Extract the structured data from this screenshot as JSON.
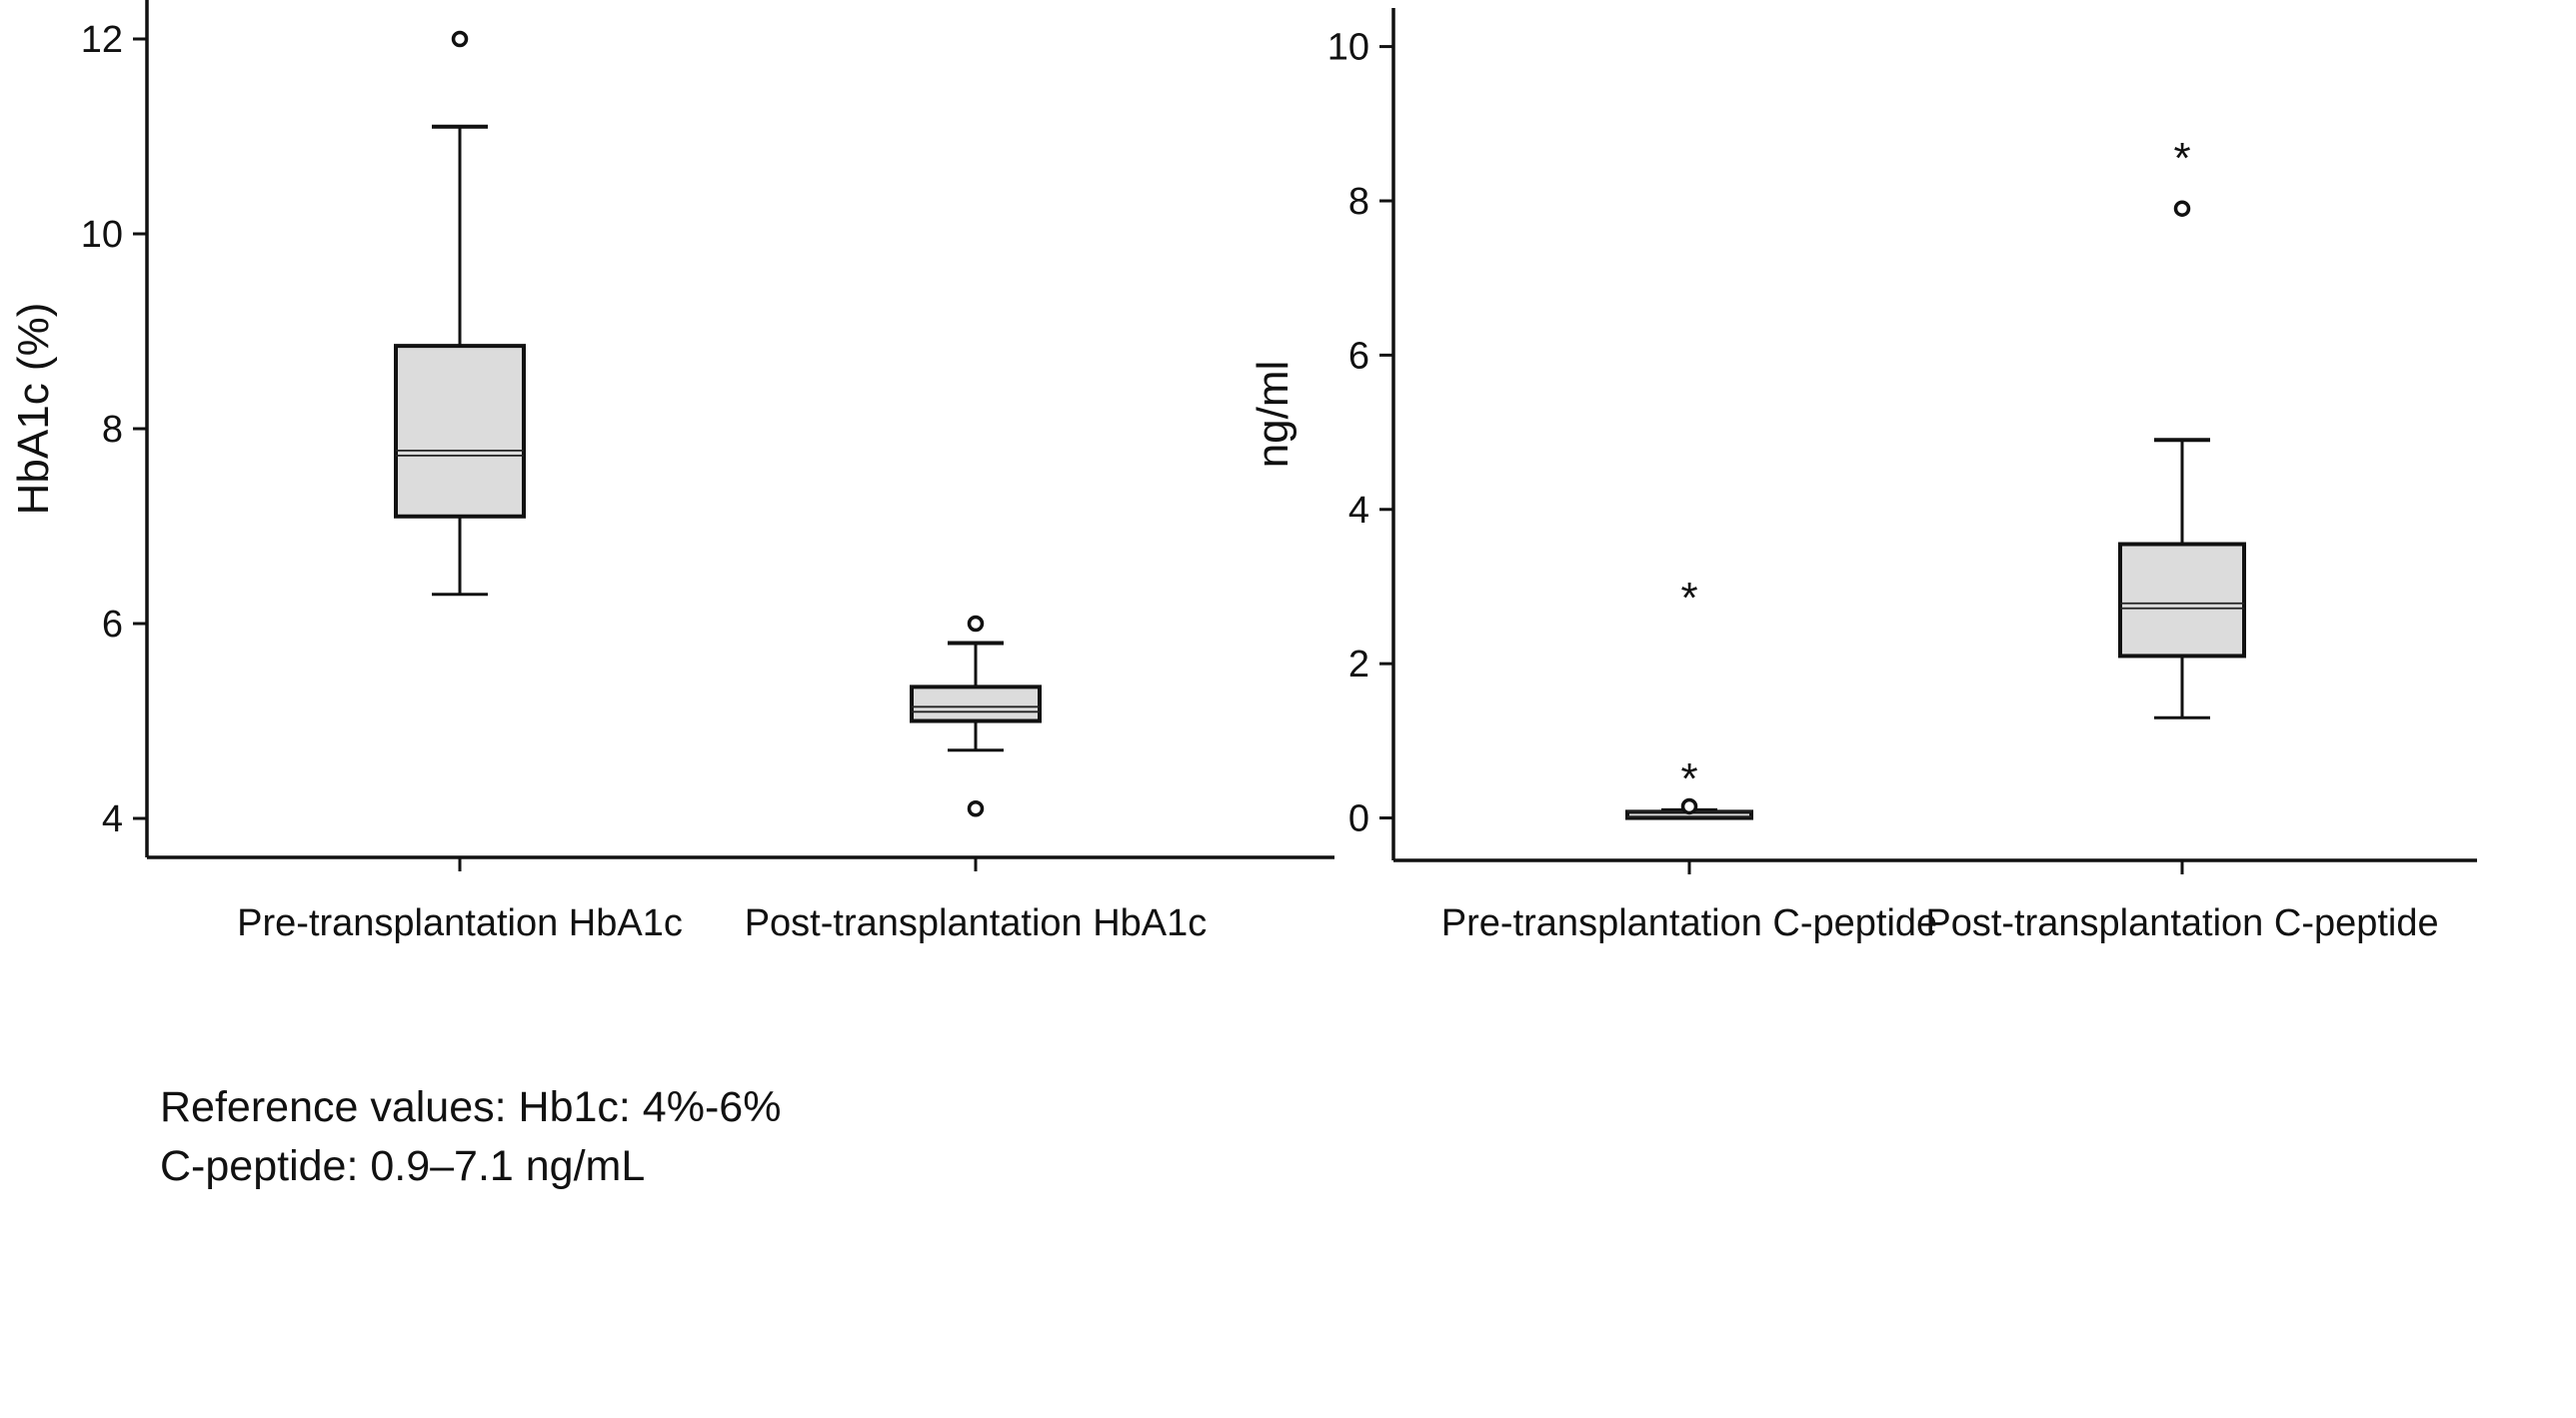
{
  "chart_data": [
    {
      "type": "box",
      "title": "",
      "xlabel": "",
      "ylabel": "HbA1c (%)",
      "ylim": [
        3.6,
        12.4
      ],
      "yticks": [
        4,
        6,
        8,
        10,
        12
      ],
      "categories": [
        "Pre-transplantation HbA1c",
        "Post-transplantation HbA1c"
      ],
      "boxes": [
        {
          "category": "Pre-transplantation HbA1c",
          "whisker_low": 6.3,
          "q1": 7.1,
          "median": 7.75,
          "q3": 8.85,
          "whisker_high": 11.1,
          "outliers": [
            {
              "value": 12.0,
              "marker": "circle"
            }
          ]
        },
        {
          "category": "Post-transplantation HbA1c",
          "whisker_low": 4.7,
          "q1": 5.0,
          "median": 5.12,
          "q3": 5.35,
          "whisker_high": 5.8,
          "outliers": [
            {
              "value": 6.0,
              "marker": "circle"
            },
            {
              "value": 4.1,
              "marker": "circle"
            }
          ]
        }
      ],
      "box_fill": "#dcdcdc",
      "grid": false
    },
    {
      "type": "box",
      "title": "",
      "xlabel": "",
      "ylabel": "ng/ml",
      "ylim": [
        -0.55,
        10.5
      ],
      "yticks": [
        0,
        2,
        4,
        6,
        8,
        10
      ],
      "categories": [
        "Pre-transplantation C-peptide",
        "Post-transplantation C-peptide"
      ],
      "boxes": [
        {
          "category": "Pre-transplantation C-peptide",
          "whisker_low": 0.0,
          "q1": 0.0,
          "median": 0.05,
          "q3": 0.08,
          "whisker_high": 0.1,
          "outliers": [
            {
              "value": 0.15,
              "marker": "circle"
            },
            {
              "value": 0.6,
              "marker": "asterisk"
            },
            {
              "value": 2.95,
              "marker": "asterisk"
            }
          ]
        },
        {
          "category": "Post-transplantation C-peptide",
          "whisker_low": 1.3,
          "q1": 2.1,
          "median": 2.75,
          "q3": 3.55,
          "whisker_high": 4.9,
          "outliers": [
            {
              "value": 7.9,
              "marker": "circle"
            },
            {
              "value": 8.65,
              "marker": "asterisk"
            }
          ]
        }
      ],
      "box_fill": "#dcdcdc",
      "grid": false
    }
  ],
  "notes": {
    "reference_line1": "Reference values: Hb1c: 4%-6%",
    "reference_line2": "C-peptide: 0.9–7.1 ng/mL"
  }
}
